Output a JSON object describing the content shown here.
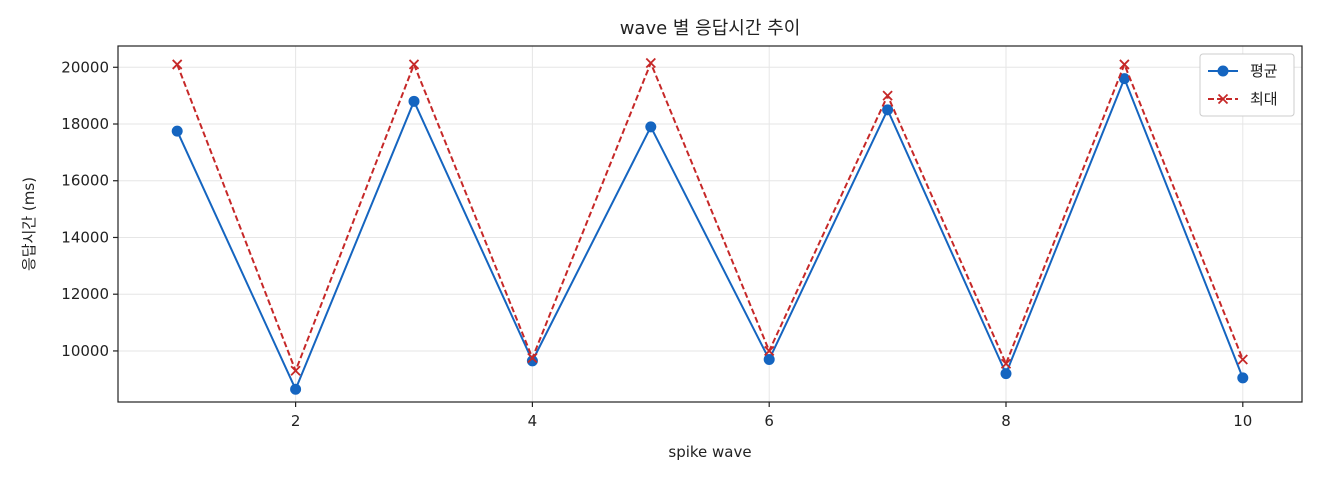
{
  "chart_data": {
    "type": "line",
    "title": "wave 별 응답시간 추이",
    "xlabel": "spike wave",
    "ylabel": "응답시간 (ms)",
    "x": [
      1,
      2,
      3,
      4,
      5,
      6,
      7,
      8,
      9,
      10
    ],
    "xlim": [
      0.5,
      10.5
    ],
    "ylim": [
      8200,
      20750
    ],
    "xticks": [
      2,
      4,
      6,
      8,
      10
    ],
    "yticks": [
      10000,
      12000,
      14000,
      16000,
      18000,
      20000
    ],
    "grid": true,
    "legend_position": "top-right",
    "series": [
      {
        "name": "평균",
        "color": "#1565c0",
        "line_style": "solid",
        "marker": "circle",
        "values": [
          17750,
          8650,
          18800,
          9650,
          17900,
          9700,
          18500,
          9200,
          19600,
          9050
        ]
      },
      {
        "name": "최대",
        "color": "#c62828",
        "line_style": "dashed",
        "marker": "x",
        "values": [
          20100,
          9300,
          20100,
          9750,
          20150,
          10000,
          19000,
          9550,
          20100,
          9700
        ]
      }
    ]
  }
}
